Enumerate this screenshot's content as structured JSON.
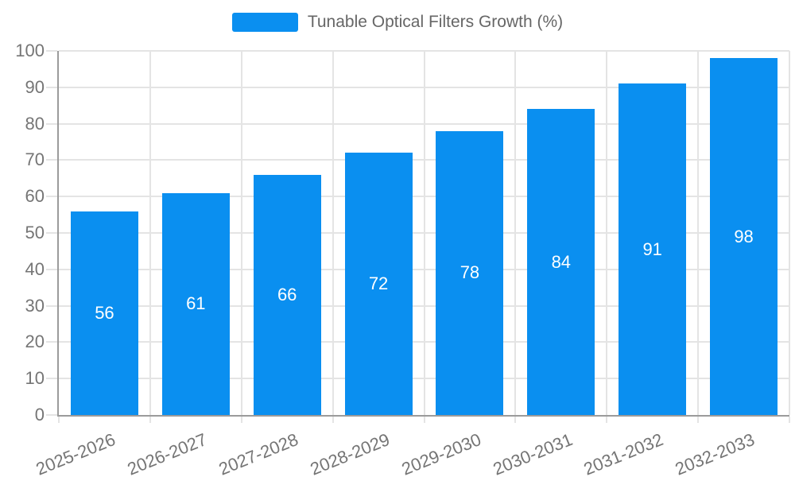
{
  "chart_data": {
    "type": "bar",
    "title": "Tunable Optical Filters Growth (%)",
    "categories": [
      "2025-2026",
      "2026-2027",
      "2027-2028",
      "2028-2029",
      "2029-2030",
      "2030-2031",
      "2031-2032",
      "2032-2033"
    ],
    "values": [
      56,
      61,
      66,
      72,
      78,
      84,
      91,
      98
    ],
    "series": [
      {
        "name": "Tunable Optical Filters Growth (%)",
        "values": [
          56,
          61,
          66,
          72,
          78,
          84,
          91,
          98
        ]
      }
    ],
    "xlabel": "",
    "ylabel": "",
    "ylim": [
      0,
      100
    ],
    "ytick_step": 10,
    "yticks": [
      0,
      10,
      20,
      30,
      40,
      50,
      60,
      70,
      80,
      90,
      100
    ],
    "grid": true,
    "legend_position": "top",
    "x_label_rotation_deg": -22,
    "value_labels_shown": true,
    "value_label_position": "center",
    "colors": {
      "bar": "#0a8ff0",
      "value_label": "#ffffff",
      "grid": "#e4e4e4",
      "axis": "#9b9b9b",
      "tick_label": "#757575",
      "legend_text": "#666666",
      "background": "#ffffff"
    }
  }
}
